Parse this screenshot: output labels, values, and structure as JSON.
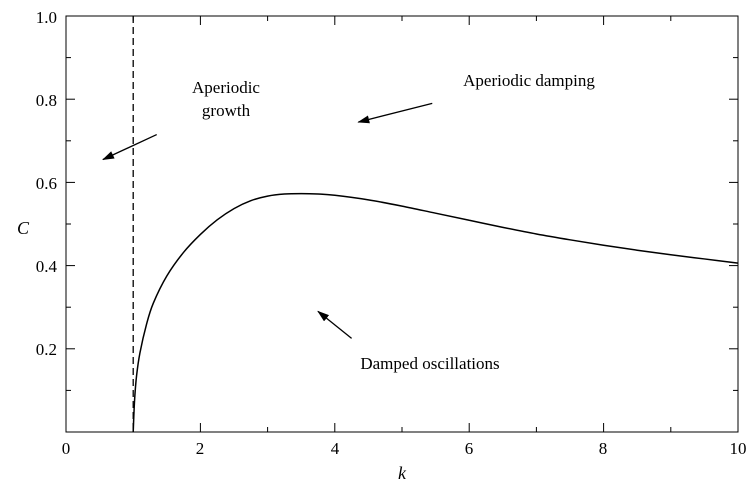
{
  "chart_data": {
    "type": "line",
    "title": "",
    "xlabel": "k",
    "ylabel": "C",
    "xlim": [
      0,
      10
    ],
    "ylim": [
      0,
      1.0
    ],
    "x_ticks": [
      0,
      2,
      4,
      6,
      8,
      10
    ],
    "x_tick_labels": [
      "0",
      "2",
      "4",
      "6",
      "8",
      "10"
    ],
    "y_ticks": [
      0.2,
      0.4,
      0.6,
      0.8,
      1.0
    ],
    "y_tick_labels": [
      "0.2",
      "0.4",
      "0.6",
      "0.8",
      "1.0"
    ],
    "grid": false,
    "series": [
      {
        "style": "solid",
        "color": "#000000",
        "x": [
          1.0,
          1.02,
          1.05,
          1.1,
          1.2,
          1.3,
          1.5,
          1.75,
          2.0,
          2.25,
          2.5,
          2.75,
          3.0,
          3.25,
          3.5,
          3.75,
          4.0,
          4.5,
          5.0,
          5.5,
          6.0,
          6.5,
          7.0,
          7.5,
          8.0,
          8.5,
          9.0,
          9.5,
          10.0
        ],
        "y": [
          0.0,
          0.075,
          0.135,
          0.19,
          0.26,
          0.31,
          0.375,
          0.432,
          0.475,
          0.51,
          0.537,
          0.556,
          0.567,
          0.572,
          0.573,
          0.572,
          0.569,
          0.558,
          0.543,
          0.526,
          0.509,
          0.492,
          0.476,
          0.462,
          0.449,
          0.437,
          0.426,
          0.416,
          0.406
        ]
      }
    ],
    "reference_lines": [
      {
        "orientation": "vertical",
        "x": 1.0,
        "style": "dashed",
        "color": "#000000"
      }
    ],
    "annotations": [
      {
        "lines": [
          "Aperiodic",
          "growth"
        ],
        "arrow_from": [
          1.35,
          0.715
        ],
        "arrow_to": [
          0.55,
          0.655
        ]
      },
      {
        "lines": [
          "Aperiodic damping"
        ],
        "arrow_from": [
          5.45,
          0.79
        ],
        "arrow_to": [
          4.35,
          0.745
        ]
      },
      {
        "lines": [
          "Damped oscillations"
        ],
        "arrow_from": [
          4.25,
          0.225
        ],
        "arrow_to": [
          3.75,
          0.29
        ]
      }
    ]
  }
}
